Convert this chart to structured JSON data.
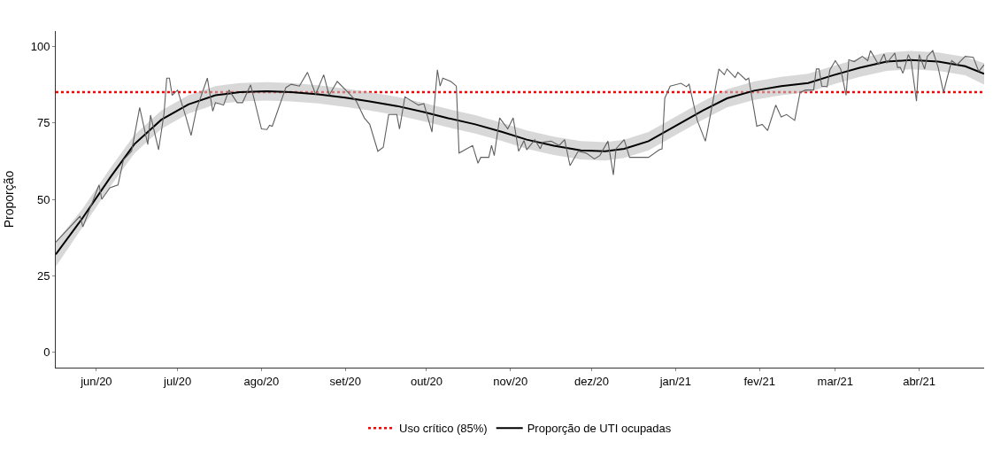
{
  "chart_data": {
    "type": "line",
    "ylabel": "Proporção",
    "xlim": [
      "2020-05-17",
      "2021-04-25"
    ],
    "ylim": [
      -5,
      105
    ],
    "yticks": [
      0,
      25,
      50,
      75,
      100
    ],
    "xticks": [
      {
        "value": "2020-06-01",
        "label": "jun/20"
      },
      {
        "value": "2020-07-01",
        "label": "jul/20"
      },
      {
        "value": "2020-08-01",
        "label": "ago/20"
      },
      {
        "value": "2020-09-01",
        "label": "set/20"
      },
      {
        "value": "2020-10-01",
        "label": "out/20"
      },
      {
        "value": "2020-11-01",
        "label": "nov/20"
      },
      {
        "value": "2020-12-01",
        "label": "dez/20"
      },
      {
        "value": "2021-01-01",
        "label": "jan/21"
      },
      {
        "value": "2021-02-01",
        "label": "fev/21"
      },
      {
        "value": "2021-03-01",
        "label": "mar/21"
      },
      {
        "value": "2021-04-01",
        "label": "abr/21"
      }
    ],
    "legend": "bottom",
    "marker": "none",
    "ref_lines": [
      {
        "axis": "y",
        "value": 85,
        "label": "Uso crítico (85%)",
        "color": "#ff0000",
        "line_style": "dotted"
      }
    ],
    "series": [
      {
        "color": "#606060",
        "x": [
          "2020-05-17",
          "2020-05-26",
          "2020-05-27",
          "2020-06-02",
          "2020-06-03",
          "2020-06-06",
          "2020-06-09",
          "2020-06-11",
          "2020-06-14",
          "2020-06-17",
          "2020-06-20",
          "2020-06-21",
          "2020-06-24",
          "2020-06-26",
          "2020-06-27",
          "2020-06-28",
          "2020-06-29",
          "2020-07-01",
          "2020-07-04",
          "2020-07-06",
          "2020-07-08",
          "2020-07-12",
          "2020-07-14",
          "2020-07-15",
          "2020-07-18",
          "2020-07-20",
          "2020-07-23",
          "2020-07-25",
          "2020-07-28",
          "2020-08-01",
          "2020-08-03",
          "2020-08-04",
          "2020-08-05",
          "2020-08-10",
          "2020-08-12",
          "2020-08-15",
          "2020-08-18",
          "2020-08-21",
          "2020-08-24",
          "2020-08-26",
          "2020-08-29",
          "2020-09-02",
          "2020-09-05",
          "2020-09-08",
          "2020-09-10",
          "2020-09-13",
          "2020-09-15",
          "2020-09-17",
          "2020-09-20",
          "2020-09-21",
          "2020-09-23",
          "2020-09-28",
          "2020-09-30",
          "2020-10-03",
          "2020-10-05",
          "2020-10-06",
          "2020-10-07",
          "2020-10-10",
          "2020-10-12",
          "2020-10-13",
          "2020-10-18",
          "2020-10-20",
          "2020-10-21",
          "2020-10-24",
          "2020-10-25",
          "2020-10-26",
          "2020-10-28",
          "2020-10-31",
          "2020-11-02",
          "2020-11-04",
          "2020-11-06",
          "2020-11-07",
          "2020-11-10",
          "2020-11-12",
          "2020-11-13",
          "2020-11-16",
          "2020-11-19",
          "2020-11-21",
          "2020-11-23",
          "2020-11-26",
          "2020-11-29",
          "2020-12-02",
          "2020-12-04",
          "2020-12-07",
          "2020-12-09",
          "2020-12-10",
          "2020-12-13",
          "2020-12-15",
          "2020-12-22",
          "2020-12-26",
          "2020-12-27",
          "2020-12-28",
          "2020-12-30",
          "2021-01-03",
          "2021-01-05",
          "2021-01-06",
          "2021-01-09",
          "2021-01-12",
          "2021-01-13",
          "2021-01-17",
          "2021-01-19",
          "2021-01-20",
          "2021-01-23",
          "2021-01-24",
          "2021-01-27",
          "2021-01-28",
          "2021-01-31",
          "2021-02-02",
          "2021-02-04",
          "2021-02-07",
          "2021-02-09",
          "2021-02-11",
          "2021-02-14",
          "2021-02-16",
          "2021-02-18",
          "2021-02-21",
          "2021-02-22",
          "2021-02-23",
          "2021-02-24",
          "2021-02-26",
          "2021-02-27",
          "2021-03-01",
          "2021-03-03",
          "2021-03-05",
          "2021-03-06",
          "2021-03-08",
          "2021-03-09",
          "2021-03-11",
          "2021-03-13",
          "2021-03-14",
          "2021-03-17",
          "2021-03-19",
          "2021-03-20",
          "2021-03-23",
          "2021-03-24",
          "2021-03-25",
          "2021-03-26",
          "2021-03-28",
          "2021-03-29",
          "2021-03-31",
          "2021-04-01",
          "2021-04-03",
          "2021-04-04",
          "2021-04-06",
          "2021-04-08",
          "2021-04-10",
          "2021-04-11",
          "2021-04-13",
          "2021-04-15",
          "2021-04-18",
          "2021-04-21",
          "2021-04-23",
          "2021-04-25"
        ],
        "values": [
          36,
          44.5,
          41,
          54.7,
          50,
          53.8,
          54.7,
          62.9,
          65.7,
          80,
          67.9,
          77.5,
          66.2,
          78,
          89.6,
          89.6,
          84,
          85.7,
          77.2,
          70.9,
          79.4,
          89.6,
          78.8,
          81.6,
          80.8,
          85.7,
          81.6,
          81.6,
          87.4,
          73,
          72.8,
          74.2,
          73.9,
          86.5,
          87.6,
          87,
          91.5,
          84.3,
          90.7,
          84,
          88.5,
          84.9,
          82.1,
          76.6,
          74.5,
          65.7,
          67,
          77.7,
          77.7,
          73,
          83.5,
          80.8,
          81.3,
          72,
          92.3,
          87,
          89.6,
          88.5,
          87,
          65.1,
          67.6,
          61.8,
          63.7,
          63.7,
          67.6,
          64.3,
          76.6,
          73,
          76.6,
          65.7,
          69.2,
          66.2,
          69.5,
          66.5,
          68.7,
          69,
          67.6,
          69.5,
          61,
          65.7,
          65.1,
          63.2,
          64.3,
          69,
          58,
          66.5,
          69.5,
          63.7,
          63.7,
          66.2,
          66.5,
          83,
          87,
          87.9,
          86.8,
          87.6,
          75.8,
          69,
          73.4,
          92.6,
          90.7,
          92.6,
          89.8,
          91.5,
          89,
          89.6,
          73.9,
          74.5,
          72.5,
          80.8,
          76.9,
          77.7,
          75.8,
          84.9,
          85.7,
          85.7,
          92.6,
          92.6,
          87,
          86.8,
          92.3,
          95.3,
          92.6,
          84,
          95.6,
          95,
          95.6,
          96.7,
          95.3,
          98.6,
          94,
          97.5,
          94.5,
          97.8,
          93.1,
          93.1,
          91.2,
          97.3,
          95.3,
          82.1,
          97.3,
          92.6,
          96.7,
          98.6,
          93.1,
          84.9,
          88.5,
          95.3,
          94,
          96.7,
          96.4,
          91.8,
          94
        ]
      },
      {
        "name": "Proporção de UTI ocupadas",
        "color": "#000000",
        "x": [
          "2020-05-17",
          "2020-05-27",
          "2020-06-06",
          "2020-06-15",
          "2020-06-25",
          "2020-07-05",
          "2020-07-15",
          "2020-07-24",
          "2020-08-03",
          "2020-08-12",
          "2020-08-22",
          "2020-09-01",
          "2020-09-10",
          "2020-09-20",
          "2020-09-30",
          "2020-10-09",
          "2020-10-19",
          "2020-10-29",
          "2020-11-07",
          "2020-11-17",
          "2020-11-27",
          "2020-12-06",
          "2020-12-13",
          "2020-12-22",
          "2021-01-01",
          "2021-01-11",
          "2021-01-20",
          "2021-01-30",
          "2021-02-09",
          "2021-02-19",
          "2021-02-28",
          "2021-03-10",
          "2021-03-20",
          "2021-03-29",
          "2021-04-08",
          "2021-04-18",
          "2021-04-25"
        ],
        "values": [
          32,
          44,
          57,
          68,
          76,
          81,
          84,
          85,
          85.3,
          85,
          84.3,
          83.2,
          82,
          80.5,
          78.5,
          76.5,
          74.5,
          72,
          69.5,
          67.5,
          66,
          65.7,
          66.5,
          69,
          74,
          79,
          83,
          85.5,
          87,
          88,
          90.5,
          93,
          95,
          95.5,
          95,
          93.5,
          91
        ],
        "lower": [
          28,
          41,
          54,
          65,
          73,
          78,
          81,
          82,
          82.3,
          82,
          81.3,
          80.2,
          79,
          77.5,
          75.5,
          73.5,
          71.5,
          69,
          66.5,
          64.5,
          63,
          62.7,
          63.5,
          66,
          71,
          76,
          80,
          82.5,
          84,
          85,
          87.5,
          90,
          92,
          92.5,
          92,
          90.5,
          87.5
        ],
        "upper": [
          36,
          47,
          60,
          71,
          79,
          84,
          87,
          88,
          88.3,
          88,
          87.3,
          86.2,
          85,
          83.5,
          81.5,
          79.5,
          77.5,
          75,
          72.5,
          70.5,
          69,
          68.7,
          69.5,
          72,
          77,
          82,
          86,
          88.5,
          90,
          91,
          93.5,
          96,
          98,
          98.5,
          98,
          96.5,
          94.5
        ]
      }
    ]
  }
}
